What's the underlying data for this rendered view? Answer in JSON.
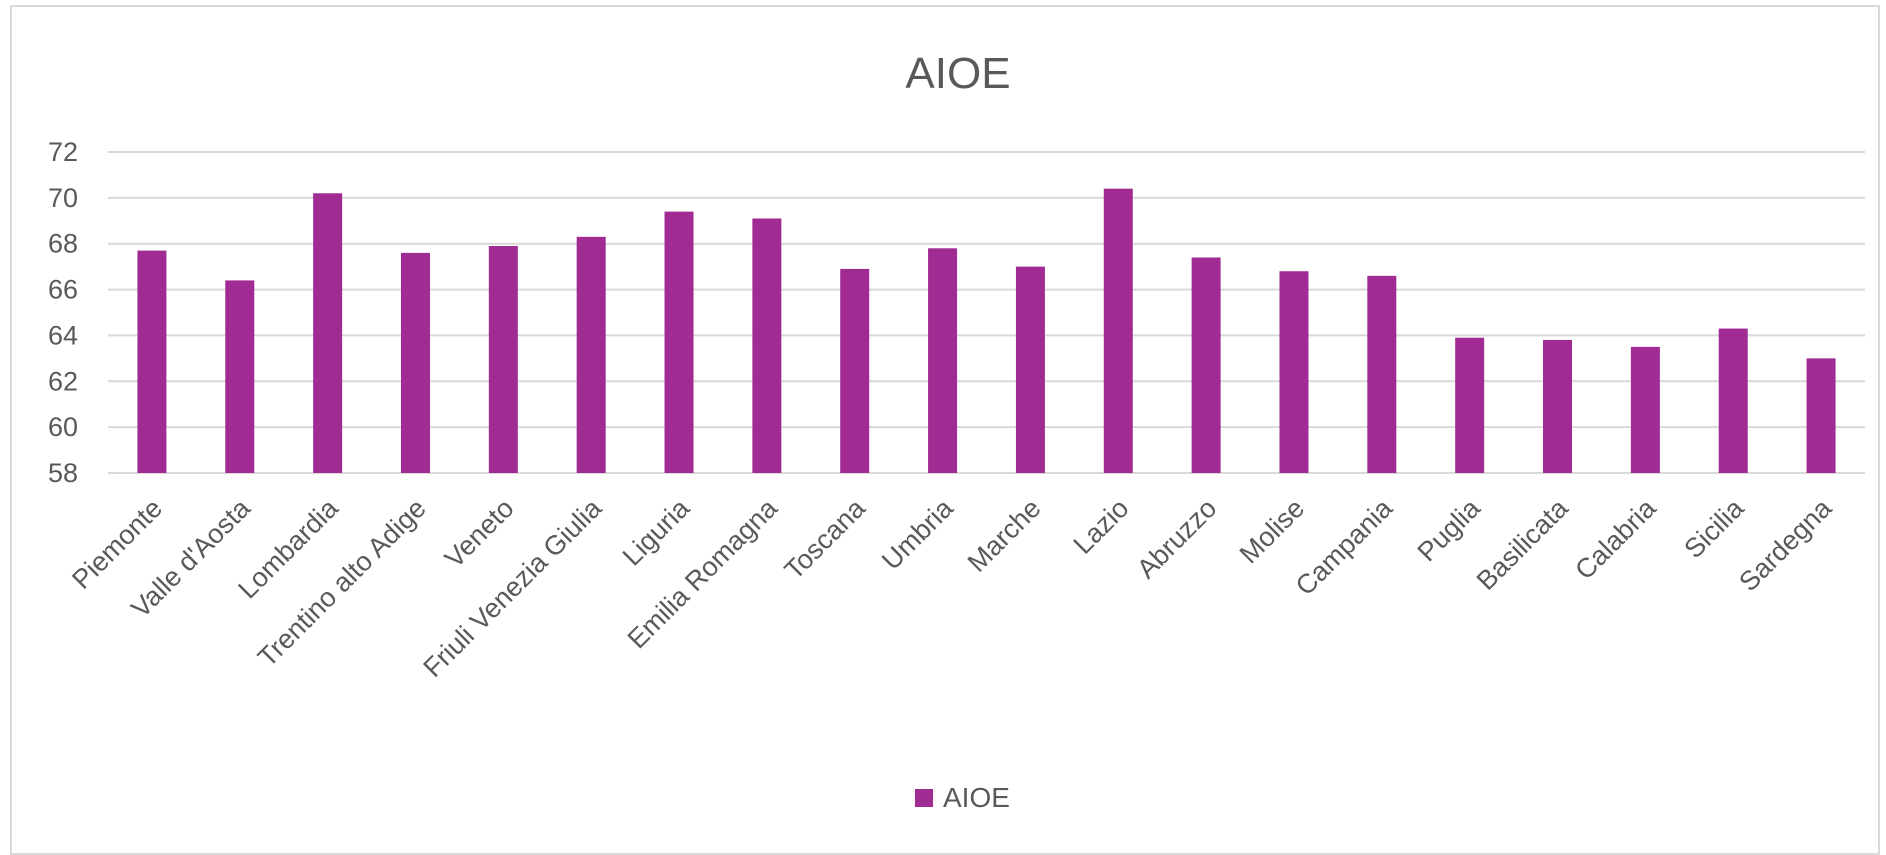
{
  "chart_data": {
    "type": "bar",
    "title": "AIOE",
    "xlabel": "",
    "ylabel": "",
    "ylim": [
      58,
      72
    ],
    "yticks": [
      58,
      60,
      62,
      64,
      66,
      68,
      70,
      72
    ],
    "grid": true,
    "legend_position": "bottom",
    "categories": [
      "Piemonte",
      "Valle d'Aosta",
      "Lombardia",
      "Trentino alto Adige",
      "Veneto",
      "Friuli Venezia Giulia",
      "Liguria",
      "Emilia Romagna",
      "Toscana",
      "Umbria",
      "Marche",
      "Lazio",
      "Abruzzo",
      "Molise",
      "Campania",
      "Puglia",
      "Basilicata",
      "Calabria",
      "Sicilia",
      "Sardegna"
    ],
    "series": [
      {
        "name": "AIOE",
        "color": "#a02b93",
        "values": [
          67.7,
          66.4,
          70.2,
          67.6,
          67.9,
          68.3,
          69.4,
          69.1,
          66.9,
          67.8,
          67.0,
          70.4,
          67.4,
          66.8,
          66.6,
          63.9,
          63.8,
          63.5,
          64.3,
          63.0
        ]
      }
    ]
  }
}
